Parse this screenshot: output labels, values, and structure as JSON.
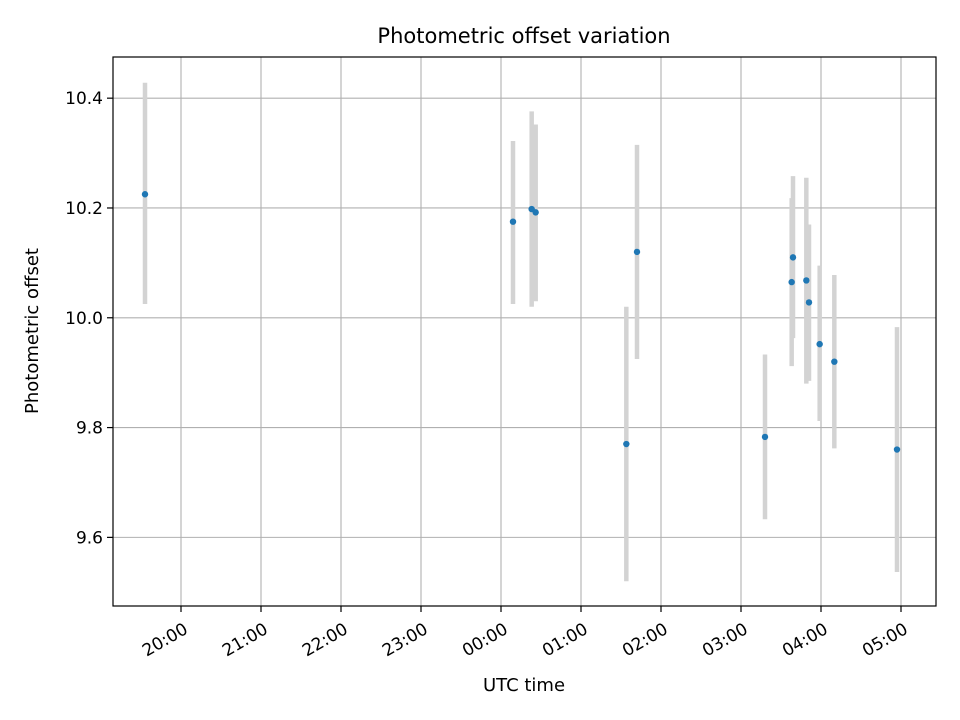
{
  "chart_data": {
    "type": "scatter",
    "title": "Photometric offset variation",
    "xlabel": "UTC time",
    "ylabel": "Photometric offset",
    "x_tick_labels": [
      "20:00",
      "21:00",
      "22:00",
      "23:00",
      "00:00",
      "01:00",
      "02:00",
      "03:00",
      "04:00",
      "05:00"
    ],
    "y_tick_labels": [
      "9.6",
      "9.8",
      "10.0",
      "10.2",
      "10.4"
    ],
    "grid": true,
    "colors": {
      "point": "#1f77b4",
      "errorbar": "#d3d3d3",
      "grid": "#b0b0b0"
    },
    "points": [
      {
        "x": "19:33",
        "y": 10.225,
        "ylow": 10.025,
        "yhigh": 10.428
      },
      {
        "x": "00:09",
        "y": 10.175,
        "ylow": 10.025,
        "yhigh": 10.322
      },
      {
        "x": "00:23",
        "y": 10.198,
        "ylow": 10.02,
        "yhigh": 10.376
      },
      {
        "x": "00:26",
        "y": 10.192,
        "ylow": 10.03,
        "yhigh": 10.352
      },
      {
        "x": "01:34",
        "y": 9.77,
        "ylow": 9.52,
        "yhigh": 10.02
      },
      {
        "x": "01:42",
        "y": 10.12,
        "ylow": 9.925,
        "yhigh": 10.315
      },
      {
        "x": "03:18",
        "y": 9.783,
        "ylow": 9.633,
        "yhigh": 9.933
      },
      {
        "x": "03:38",
        "y": 10.065,
        "ylow": 9.912,
        "yhigh": 10.218
      },
      {
        "x": "03:39",
        "y": 10.11,
        "ylow": 9.963,
        "yhigh": 10.258
      },
      {
        "x": "03:49",
        "y": 10.068,
        "ylow": 9.88,
        "yhigh": 10.255
      },
      {
        "x": "03:51",
        "y": 10.028,
        "ylow": 9.885,
        "yhigh": 10.17
      },
      {
        "x": "03:59",
        "y": 9.952,
        "ylow": 9.812,
        "yhigh": 10.095
      },
      {
        "x": "04:10",
        "y": 9.92,
        "ylow": 9.762,
        "yhigh": 10.078
      },
      {
        "x": "04:57",
        "y": 9.76,
        "ylow": 9.537,
        "yhigh": 9.983
      }
    ]
  }
}
